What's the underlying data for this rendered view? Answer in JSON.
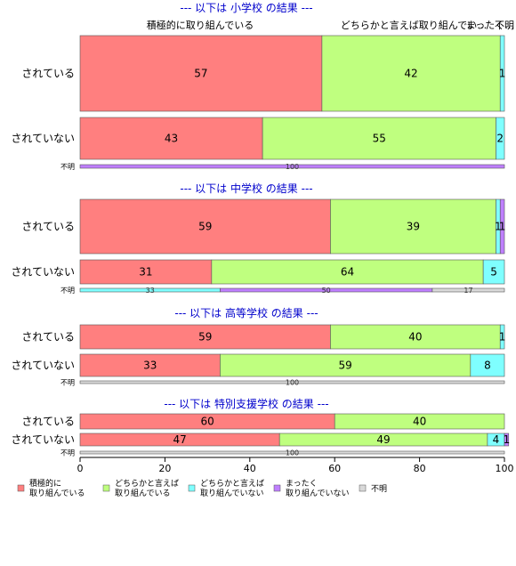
{
  "chart_data": {
    "type": "bar",
    "orientation": "horizontal-stacked",
    "xlim": [
      0,
      100
    ],
    "x_ticks": [
      "0",
      "20",
      "40",
      "60",
      "80",
      "100"
    ],
    "categories_legend": [
      "積極的に\n取り組んでいる",
      "どちらかと言えば\n取り組んでいる",
      "どちらかと言えば\n取り組んでいない",
      "まったく\n取り組んでいない",
      "不明"
    ],
    "top_labels": [
      "積極的に取り組んでいる",
      "どちらかと言えば取り組んでい…",
      "まったく…",
      "不明"
    ],
    "colors": [
      "#ff7f7f",
      "#bfff7f",
      "#7fffff",
      "#bf7fff",
      "#d9d9d9"
    ],
    "panels": [
      {
        "title": "--- 以下は 小学校 の結果 ---",
        "rows": [
          {
            "label": "されている",
            "values": [
              57,
              42,
              1,
              0,
              0
            ]
          },
          {
            "label": "されていない",
            "values": [
              43,
              55,
              2,
              0,
              0
            ]
          },
          {
            "label": "不明",
            "values": [
              0,
              0,
              0,
              100,
              0
            ],
            "labels": [
              "",
              "",
              "",
              "100",
              ""
            ]
          }
        ]
      },
      {
        "title": "--- 以下は 中学校 の結果 ---",
        "rows": [
          {
            "label": "されている",
            "values": [
              59,
              39,
              1,
              1,
              0
            ]
          },
          {
            "label": "されていない",
            "values": [
              31,
              64,
              5,
              0,
              0
            ]
          },
          {
            "label": "不明",
            "values": [
              0,
              0,
              33,
              50,
              17
            ]
          }
        ]
      },
      {
        "title": "--- 以下は 高等学校 の結果 ---",
        "rows": [
          {
            "label": "されている",
            "values": [
              59,
              40,
              1,
              0,
              0
            ]
          },
          {
            "label": "されていない",
            "values": [
              33,
              59,
              8,
              0,
              0
            ]
          },
          {
            "label": "不明",
            "values": [
              0,
              0,
              0,
              0,
              100
            ]
          }
        ]
      },
      {
        "title": "--- 以下は 特別支援学校 の結果 ---",
        "rows": [
          {
            "label": "されている",
            "values": [
              60,
              40,
              0,
              0,
              0
            ]
          },
          {
            "label": "されていない",
            "values": [
              47,
              49,
              4,
              1,
              0
            ]
          },
          {
            "label": "不明",
            "values": [
              0,
              0,
              0,
              0,
              100
            ]
          }
        ]
      }
    ]
  }
}
